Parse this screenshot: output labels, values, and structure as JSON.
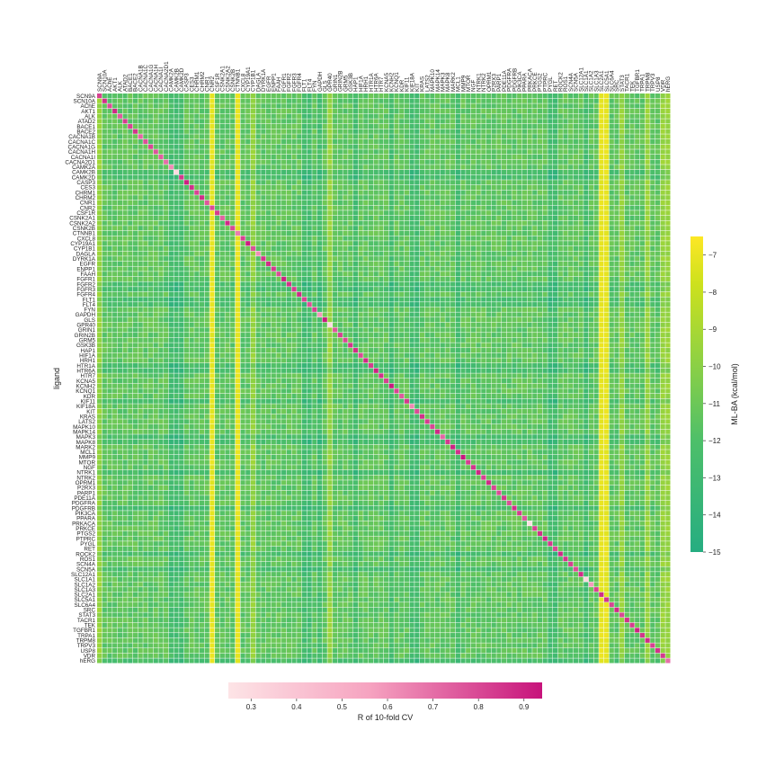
{
  "chart_data": {
    "type": "heatmap",
    "title": "",
    "ylabel": "ligand",
    "xlabel": "",
    "targets": [
      "SCN9A",
      "SCN10A",
      "AChE",
      "AKT1",
      "ALK",
      "ATAD2",
      "BACE1",
      "BACE2",
      "CACNA1B",
      "CACNA1C",
      "CACNA1G",
      "CACNA1H",
      "CACNA1I",
      "CACNA2D1",
      "CAMK2A",
      "CAMK2B",
      "CAMK2D",
      "CASP3",
      "CES3",
      "CHRM1",
      "CHRM2",
      "CNR1",
      "CNR2",
      "CSF1R",
      "CSNK2A1",
      "CSNK2A2",
      "CSNK2B",
      "CTNNB1",
      "CXCL8",
      "CYP19A1",
      "CYP1B1",
      "DAGLA",
      "DYRK1A",
      "EGFR",
      "ENPP1",
      "FAAH",
      "FGFR1",
      "FGFR2",
      "FGFR3",
      "FGFR4",
      "FLT1",
      "FLT4",
      "FYN",
      "GAPDH",
      "GLS",
      "GPR40",
      "GRIN1",
      "GRIN2B",
      "GRM5",
      "GSK3B",
      "HAP1",
      "HIF1A",
      "HRH1",
      "HTR1A",
      "HTR6A",
      "HTR7",
      "KCNA5",
      "KCNH2",
      "KCNQ1",
      "KDR",
      "KIF11",
      "KIF18A",
      "KIT",
      "KRAS",
      "LATS2",
      "MAPK10",
      "MAPK14",
      "MAPK3",
      "MAPK8",
      "MARK2",
      "MCL1",
      "MMP9",
      "MTOR",
      "NGF",
      "NTRK1",
      "NTRK2",
      "OPRM1",
      "P2RX3",
      "PARP1",
      "PDE11A",
      "PDGFRA",
      "PDGFRB",
      "PIK3CA",
      "PPARA",
      "PRKACA",
      "PRKCE",
      "PTGS2",
      "PTPRC",
      "PYGL",
      "RET",
      "ROCK2",
      "ROS1",
      "SCN4A",
      "SCN5A",
      "SLC12A1",
      "SLC1A1",
      "SLC1A2",
      "SLC1A3",
      "SLC2A1",
      "SLC5A1",
      "SLC6A4",
      "SRC",
      "STAT3",
      "TACR1",
      "TEK",
      "TGFBR1",
      "TRPA1",
      "TRPM8",
      "TRPV3",
      "USP8",
      "VDR",
      "hERG"
    ],
    "special_columns": {
      "yellow": [
        "CNR2",
        "CTNNB1",
        "SLC2A1",
        "SLC5A1"
      ],
      "light": [
        "CYP1B1",
        "SCN9A",
        "STAT3",
        "TRPM8",
        "VDR",
        "hERG",
        "GPR40"
      ],
      "dark": [
        "CAMK2A",
        "CAMK2B",
        "CAMK2D",
        "FLT1",
        "FLT4",
        "GAPDH",
        "HAP1",
        "KIF18A",
        "KIT",
        "MCL1",
        "RET",
        "PYGL",
        "SLC1A1",
        "KCNH2"
      ]
    },
    "special_rows": {
      "dark": [
        "CAMK2B",
        "CAMK2D",
        "FGFR2",
        "FGFR3",
        "FLT1",
        "FLT4",
        "HTR1A",
        "HTR6A",
        "KIF11",
        "MAPK3",
        "MAPK8",
        "NTRK1",
        "PDGFRB",
        "ROCK2",
        "SCN5A",
        "hERG"
      ]
    },
    "diagonal_r": [
      0.82,
      0.86,
      0.79,
      0.88,
      0.75,
      0.83,
      0.81,
      0.85,
      0.72,
      0.78,
      0.8,
      0.77,
      0.74,
      0.7,
      0.62,
      0.3,
      0.84,
      0.9,
      0.86,
      0.81,
      0.87,
      0.76,
      0.79,
      0.83,
      0.73,
      0.88,
      0.8,
      0.66,
      0.82,
      0.91,
      0.78,
      0.62,
      0.85,
      0.87,
      0.84,
      0.79,
      0.9,
      0.86,
      0.83,
      0.88,
      0.81,
      0.78,
      0.82,
      0.59,
      0.92,
      0.3,
      0.76,
      0.82,
      0.8,
      0.85,
      0.87,
      0.79,
      0.88,
      0.83,
      0.9,
      0.86,
      0.82,
      0.92,
      0.81,
      0.75,
      0.84,
      0.63,
      0.79,
      0.86,
      0.83,
      0.8,
      0.88,
      0.72,
      0.84,
      0.9,
      0.86,
      0.93,
      0.83,
      0.85,
      0.89,
      0.82,
      0.88,
      0.81,
      0.79,
      0.85,
      0.78,
      0.87,
      0.83,
      0.76,
      0.28,
      0.82,
      0.86,
      0.89,
      0.84,
      0.8,
      0.88,
      0.85,
      0.82,
      0.79,
      0.87,
      0.3,
      0.58,
      0.82,
      0.87,
      0.85,
      0.81,
      0.88,
      0.8,
      0.86,
      0.83,
      0.9,
      0.85,
      0.88,
      0.82,
      0.86,
      0.84,
      0.7
    ],
    "colorbar_ba": {
      "label": "ML-BA (kcal/mol)",
      "min": -15,
      "max": -6.5,
      "ticks": [
        -7,
        -8,
        -9,
        -10,
        -11,
        -12,
        -13,
        -14,
        -15
      ]
    },
    "colorbar_r": {
      "label": "R of 10-fold CV",
      "min": 0.25,
      "max": 0.94,
      "ticks": [
        0.3,
        0.4,
        0.5,
        0.6,
        0.7,
        0.8,
        0.9
      ]
    }
  },
  "colors": {
    "ba_low": "#26ad81",
    "ba_mid": "#9ad43c",
    "ba_high": "#fde725",
    "r_low": "#fde4e6",
    "r_high": "#c7137b",
    "grid": "#ffffff"
  }
}
